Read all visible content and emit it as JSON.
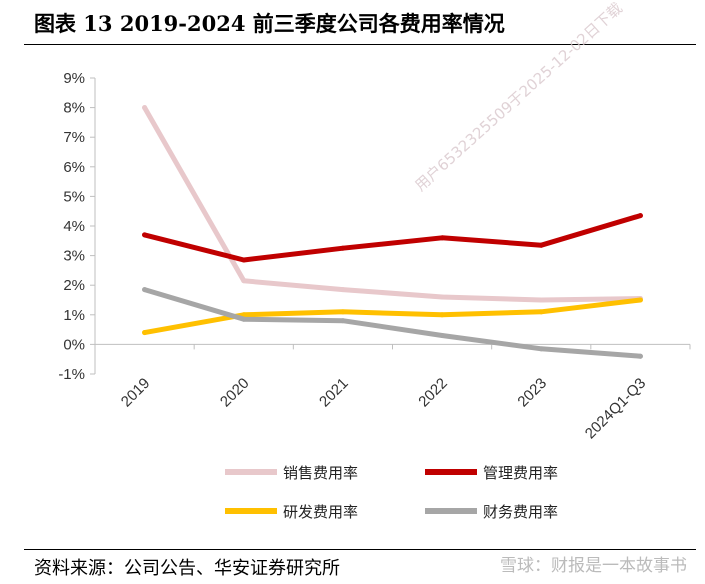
{
  "header": {
    "title": "图表 13 2019-2024 前三季度公司各费用率情况"
  },
  "footer": {
    "source": "资料来源：公司公告、华安证券研究所",
    "watermark": "雪球：财报是一本故事书"
  },
  "overlay": {
    "diagonal_watermark": "用户6532325509于2025-12-02日下载"
  },
  "colors": {
    "sales": "#e8c8cb",
    "management": "#c00000",
    "rnd": "#ffc000",
    "finance": "#a6a6a6"
  },
  "chart_data": {
    "type": "line",
    "title": "2019-2024 前三季度公司各费用率情况",
    "xlabel": "",
    "ylabel": "",
    "categories": [
      "2019",
      "2020",
      "2021",
      "2022",
      "2023",
      "2024Q1-Q3"
    ],
    "ylim": [
      -1,
      9
    ],
    "yticks": [
      "-1%",
      "0%",
      "1%",
      "2%",
      "3%",
      "4%",
      "5%",
      "6%",
      "7%",
      "8%",
      "9%"
    ],
    "legend_position": "bottom",
    "grid": false,
    "series": [
      {
        "name": "销售费用率",
        "color_key": "sales",
        "values": [
          8.0,
          2.15,
          1.85,
          1.6,
          1.5,
          1.55
        ]
      },
      {
        "name": "管理费用率",
        "color_key": "management",
        "values": [
          3.7,
          2.85,
          3.25,
          3.6,
          3.35,
          4.35
        ]
      },
      {
        "name": "研发费用率",
        "color_key": "rnd",
        "values": [
          0.4,
          1.0,
          1.1,
          1.0,
          1.1,
          1.5
        ]
      },
      {
        "name": "财务费用率",
        "color_key": "finance",
        "values": [
          1.85,
          0.85,
          0.8,
          0.3,
          -0.15,
          -0.4
        ]
      }
    ]
  }
}
